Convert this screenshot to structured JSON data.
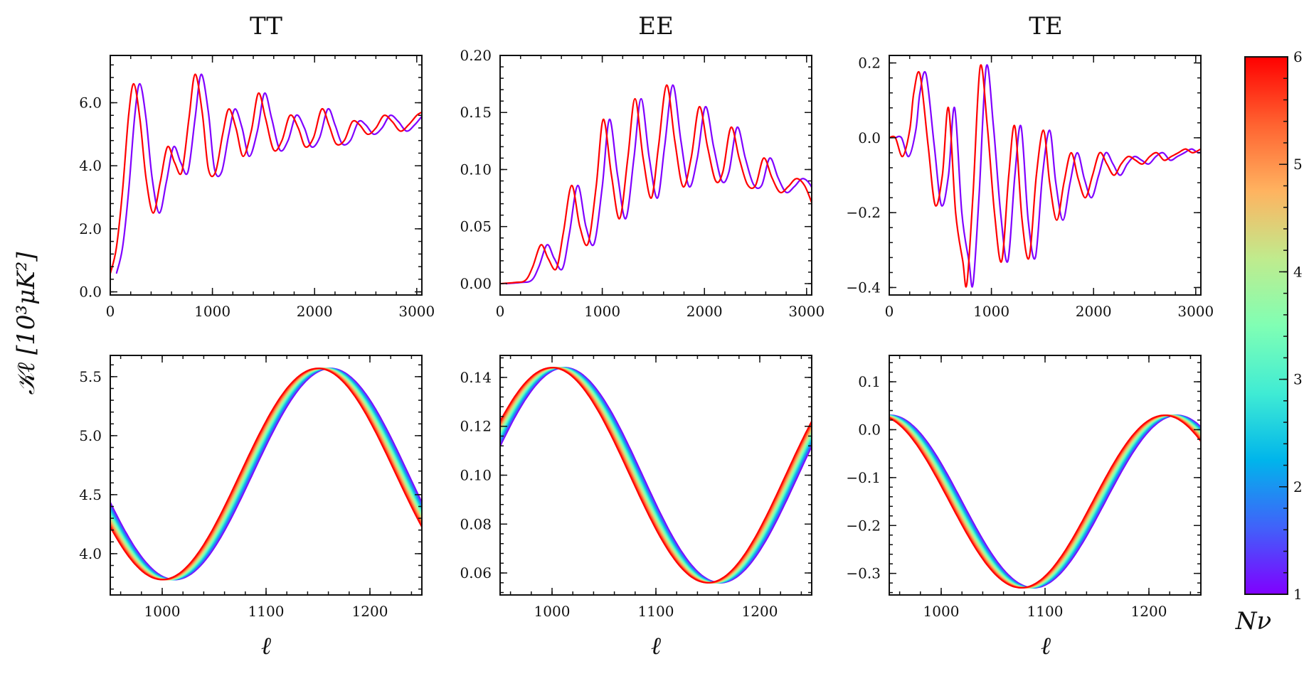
{
  "column_titles": [
    "TT",
    "EE",
    "TE"
  ],
  "ylabel": "𝒦ℓ  [10³μK²]",
  "xlabel": "ℓ",
  "colorbar": {
    "label": "Nν",
    "range": [
      1,
      6
    ],
    "ticks": [
      "1",
      "2",
      "3",
      "4",
      "5",
      "6"
    ],
    "colormap": [
      "#8000ff",
      "#4062fa",
      "#00b5eb",
      "#40ecd4",
      "#80ffb4",
      "#c0eb8d",
      "#ffb360",
      "#ff6230",
      "#ff0000"
    ]
  },
  "chart_data": [
    {
      "type": "line",
      "panel": "TT-full",
      "xlim": [
        0,
        3050
      ],
      "ylim": [
        -0.1,
        7.5
      ],
      "xticks": [
        "0",
        "1000",
        "2000",
        "3000"
      ],
      "xtick_values": [
        0,
        1000,
        2000,
        3000
      ],
      "yticks": [
        "0.0",
        "2.0",
        "4.0",
        "6.0"
      ],
      "ytick_values": [
        0,
        2,
        4,
        6
      ],
      "series_nu": [
        1,
        6
      ],
      "x": [
        2,
        60,
        120,
        180,
        230,
        290,
        350,
        420,
        490,
        560,
        630,
        700,
        770,
        830,
        900,
        960,
        1030,
        1100,
        1160,
        1230,
        1300,
        1380,
        1450,
        1520,
        1600,
        1680,
        1760,
        1840,
        1910,
        1990,
        2070,
        2140,
        2210,
        2290,
        2370,
        2440,
        2520,
        2600,
        2680,
        2760,
        2840,
        2920,
        3000,
        3050
      ],
      "y": [
        0.6,
        1.4,
        3.2,
        5.6,
        6.6,
        5.5,
        3.6,
        2.5,
        3.5,
        4.6,
        4.1,
        3.8,
        5.5,
        6.9,
        5.7,
        3.9,
        3.8,
        5.0,
        5.8,
        5.2,
        4.3,
        5.1,
        6.3,
        5.5,
        4.5,
        4.8,
        5.6,
        5.2,
        4.6,
        4.9,
        5.8,
        5.3,
        4.7,
        4.8,
        5.4,
        5.3,
        5.0,
        5.2,
        5.6,
        5.4,
        5.1,
        5.3,
        5.6,
        5.7
      ]
    },
    {
      "type": "line",
      "panel": "EE-full",
      "xlim": [
        0,
        3050
      ],
      "ylim": [
        -0.01,
        0.2
      ],
      "xticks": [
        "0",
        "1000",
        "2000",
        "3000"
      ],
      "xtick_values": [
        0,
        1000,
        2000,
        3000
      ],
      "yticks": [
        "0.00",
        "0.05",
        "0.10",
        "0.15",
        "0.20"
      ],
      "ytick_values": [
        0,
        0.05,
        0.1,
        0.15,
        0.2
      ],
      "series_nu": [
        1,
        6
      ],
      "x": [
        0,
        150,
        250,
        320,
        400,
        470,
        550,
        620,
        700,
        780,
        860,
        940,
        1010,
        1090,
        1170,
        1250,
        1320,
        1400,
        1480,
        1550,
        1630,
        1710,
        1790,
        1870,
        1950,
        2030,
        2110,
        2180,
        2260,
        2340,
        2420,
        2500,
        2580,
        2660,
        2740,
        2820,
        2900,
        2980,
        3050
      ],
      "y": [
        0,
        0.001,
        0.003,
        0.015,
        0.034,
        0.022,
        0.013,
        0.045,
        0.086,
        0.05,
        0.035,
        0.085,
        0.144,
        0.095,
        0.057,
        0.11,
        0.162,
        0.11,
        0.075,
        0.12,
        0.174,
        0.125,
        0.085,
        0.11,
        0.155,
        0.12,
        0.09,
        0.098,
        0.137,
        0.11,
        0.087,
        0.086,
        0.11,
        0.093,
        0.08,
        0.085,
        0.092,
        0.086,
        0.071
      ]
    },
    {
      "type": "line",
      "panel": "TE-full",
      "xlim": [
        0,
        3050
      ],
      "ylim": [
        -0.42,
        0.22
      ],
      "xticks": [
        "0",
        "1000",
        "2000",
        "3000"
      ],
      "xtick_values": [
        0,
        1000,
        2000,
        3000
      ],
      "yticks": [
        "−0.4",
        "−0.2",
        "0.0",
        "0.2"
      ],
      "ytick_values": [
        -0.4,
        -0.2,
        0,
        0.2
      ],
      "series_nu": [
        1,
        6
      ],
      "x": [
        0,
        60,
        130,
        200,
        240,
        300,
        380,
        450,
        520,
        580,
        650,
        720,
        760,
        820,
        890,
        960,
        1030,
        1100,
        1170,
        1230,
        1300,
        1370,
        1440,
        1510,
        1570,
        1640,
        1710,
        1780,
        1850,
        1920,
        1990,
        2060,
        2130,
        2200,
        2270,
        2340,
        2410,
        2480,
        2550,
        2620,
        2690,
        2760,
        2830,
        2900,
        2970,
        3050
      ],
      "y": [
        0,
        0,
        -0.05,
        0.02,
        0.12,
        0.17,
        -0.02,
        -0.18,
        -0.1,
        0.08,
        -0.2,
        -0.33,
        -0.39,
        -0.15,
        0.19,
        0.03,
        -0.2,
        -0.33,
        -0.1,
        0.03,
        -0.22,
        -0.32,
        -0.1,
        0.02,
        -0.12,
        -0.22,
        -0.12,
        -0.04,
        -0.11,
        -0.16,
        -0.1,
        -0.04,
        -0.07,
        -0.1,
        -0.07,
        -0.05,
        -0.06,
        -0.07,
        -0.05,
        -0.04,
        -0.06,
        -0.05,
        -0.04,
        -0.03,
        -0.04,
        -0.03
      ]
    },
    {
      "type": "line",
      "panel": "TT-zoom",
      "xlim": [
        950,
        1250
      ],
      "ylim": [
        3.65,
        5.68
      ],
      "xticks": [
        "1000",
        "1100",
        "1200"
      ],
      "xtick_values": [
        1000,
        1100,
        1200
      ],
      "yticks": [
        "4.0",
        "4.5",
        "5.0",
        "5.5"
      ],
      "ytick_values": [
        4.0,
        4.5,
        5.0,
        5.5
      ],
      "series_nu": [
        1,
        1.5,
        2,
        2.5,
        3,
        3.5,
        4,
        4.5,
        5,
        5.5,
        6
      ],
      "model": {
        "mid": 4.675,
        "amp": 0.895,
        "center": 1150,
        "period": 300,
        "shift_per_nu": -2.4,
        "ref_nu": 6
      }
    },
    {
      "type": "line",
      "panel": "EE-zoom",
      "xlim": [
        950,
        1250
      ],
      "ylim": [
        0.051,
        0.149
      ],
      "xticks": [
        "1000",
        "1100",
        "1200"
      ],
      "xtick_values": [
        1000,
        1100,
        1200
      ],
      "yticks": [
        "0.06",
        "0.08",
        "0.10",
        "0.12",
        "0.14"
      ],
      "ytick_values": [
        0.06,
        0.08,
        0.1,
        0.12,
        0.14
      ],
      "series_nu": [
        1,
        1.5,
        2,
        2.5,
        3,
        3.5,
        4,
        4.5,
        5,
        5.5,
        6
      ],
      "model": {
        "mid": 0.1,
        "amp": 0.044,
        "center": 1000,
        "period": 300,
        "shift_per_nu": -2.4,
        "ref_nu": 6
      }
    },
    {
      "type": "line",
      "panel": "TE-zoom",
      "xlim": [
        950,
        1250
      ],
      "ylim": [
        -0.345,
        0.155
      ],
      "xticks": [
        "1000",
        "1100",
        "1200"
      ],
      "xtick_values": [
        1000,
        1100,
        1200
      ],
      "yticks": [
        "−0.3",
        "−0.2",
        "−0.1",
        "0.0",
        "0.1"
      ],
      "ytick_values": [
        -0.3,
        -0.2,
        -0.1,
        0,
        0.1
      ],
      "series_nu": [
        1,
        1.5,
        2,
        2.5,
        3,
        3.5,
        4,
        4.5,
        5,
        5.5,
        6
      ],
      "model": {
        "mid": -0.15,
        "amp": 0.18,
        "center": 1215,
        "period": 276,
        "shift_per_nu": -2.4,
        "ref_nu": 6
      }
    }
  ]
}
